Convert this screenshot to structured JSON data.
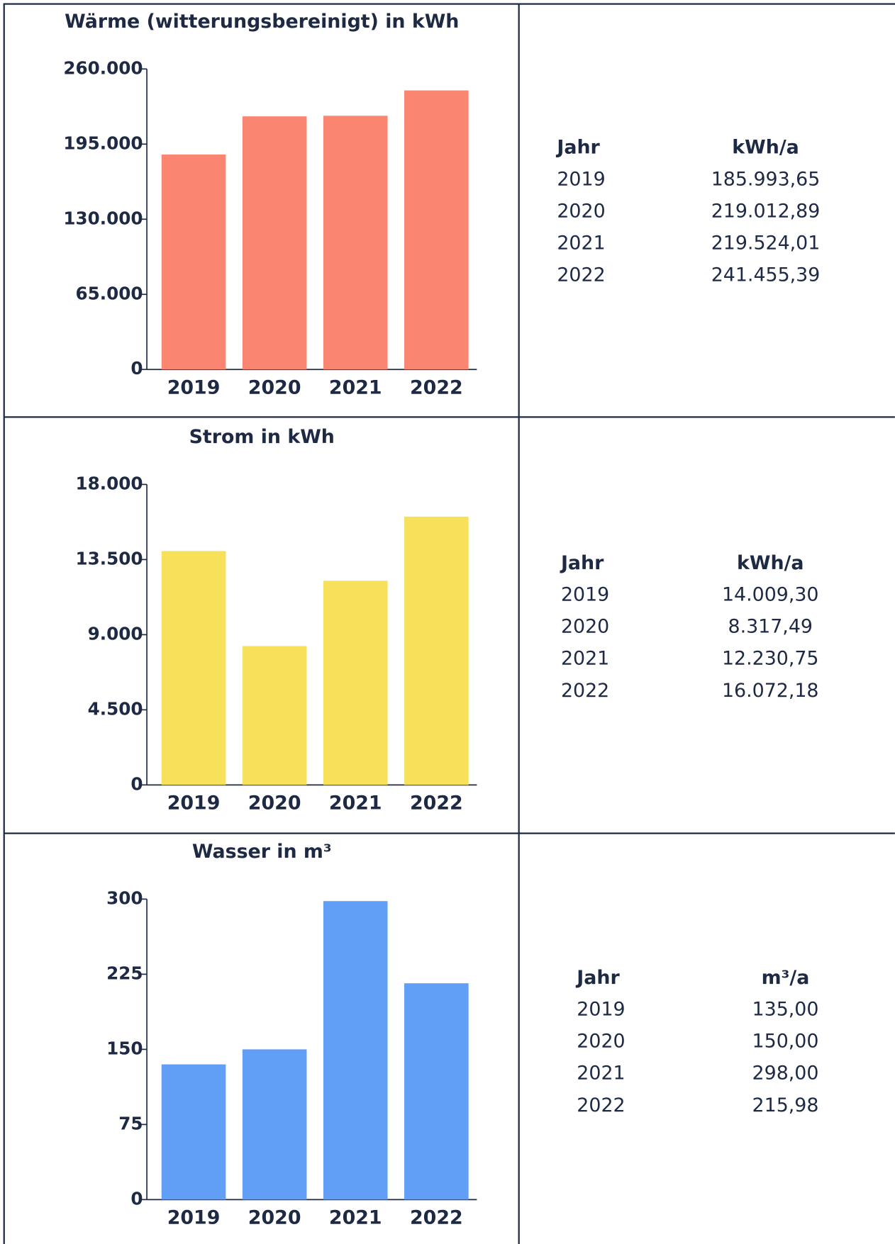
{
  "chart_data": [
    {
      "type": "bar",
      "title": "Wärme (witterungsbereinigt) in kWh",
      "categories": [
        "2019",
        "2020",
        "2021",
        "2022"
      ],
      "values": [
        185993.65,
        219012.89,
        219524.01,
        241455.39
      ],
      "value_labels": [
        "185.993,65",
        "219.012,89",
        "219.524,01",
        "241.455,39"
      ],
      "color": "#fa8672",
      "ylim": [
        0,
        260000
      ],
      "yticks": [
        0,
        {
          "value": 65000,
          "label": "65.000"
        },
        {
          "value": 130000,
          "label": "130.000"
        },
        {
          "value": 195000,
          "label": "195.000"
        },
        {
          "value": 260000,
          "label": "260.000"
        }
      ]
    },
    {
      "type": "bar",
      "title": "Strom in kWh",
      "categories": [
        "2019",
        "2020",
        "2021",
        "2022"
      ],
      "values": [
        14009.3,
        8317.49,
        12230.75,
        16072.18
      ],
      "value_labels": [
        "14.009,30",
        "8.317,49",
        "12.230,75",
        "16.072,18"
      ],
      "color": "#f7e05a",
      "ylim": [
        0,
        18000
      ],
      "yticks": [
        0,
        {
          "value": 4500,
          "label": "4.500"
        },
        {
          "value": 9000,
          "label": "9.000"
        },
        {
          "value": 13500,
          "label": "13.500"
        },
        {
          "value": 18000,
          "label": "18.000"
        }
      ]
    },
    {
      "type": "bar",
      "title": "Wasser in m³",
      "categories": [
        "2019",
        "2020",
        "2021",
        "2022"
      ],
      "values": [
        135.0,
        150.0,
        298.0,
        215.98
      ],
      "value_labels": [
        "135,00",
        "150,00",
        "298,00",
        "215,98"
      ],
      "color": "#619ef5",
      "ylim": [
        0,
        300
      ],
      "yticks": [
        0,
        75,
        150,
        225,
        300
      ]
    }
  ],
  "tables": [
    {
      "columns": [
        "Jahr",
        "kWh/a"
      ]
    },
    {
      "columns": [
        "Jahr",
        "kWh/a"
      ]
    },
    {
      "columns": [
        "Jahr",
        "m³/a"
      ]
    }
  ]
}
